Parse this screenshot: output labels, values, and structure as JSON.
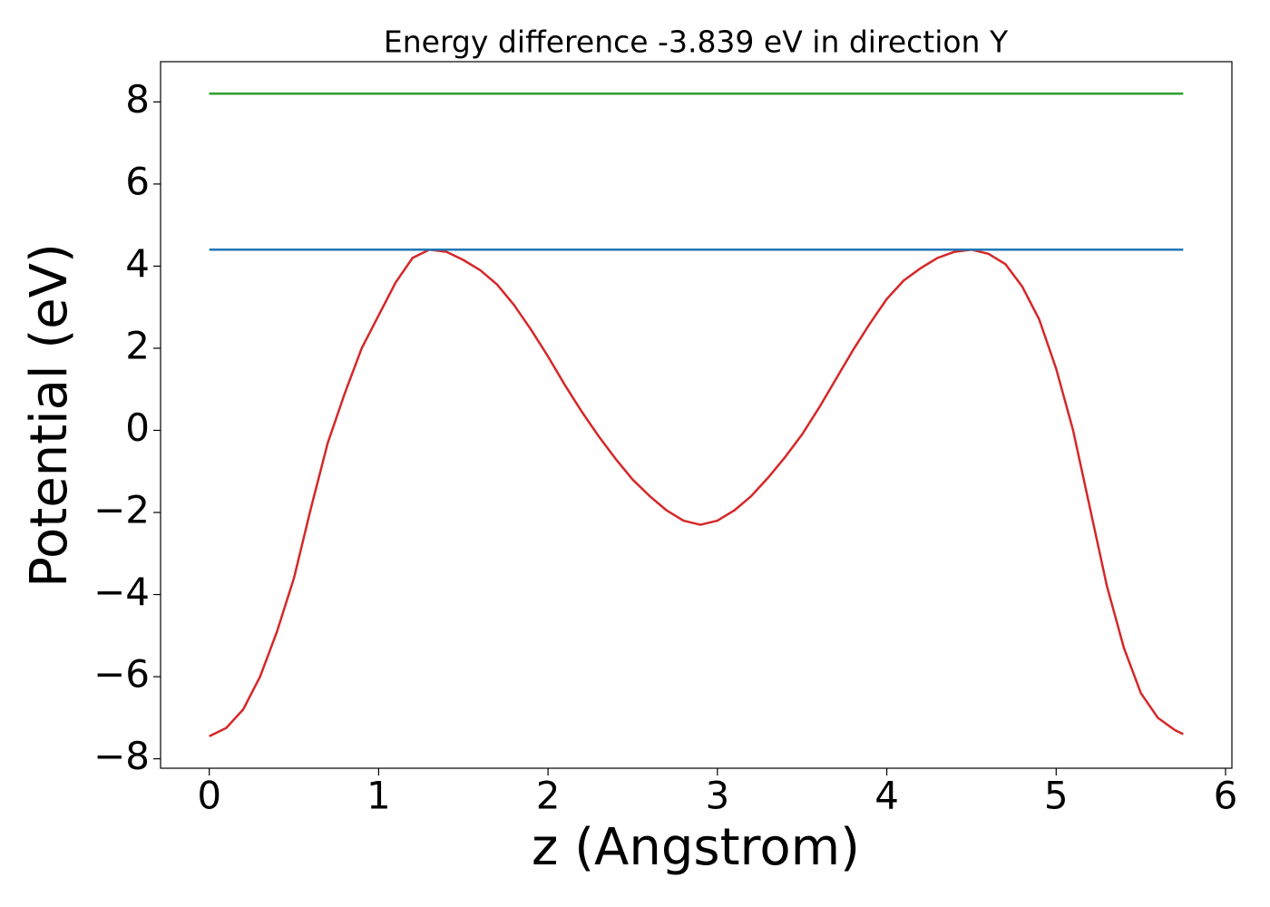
{
  "chart_data": {
    "type": "line",
    "title": "Energy difference -3.839 eV in direction Y",
    "x_label": "z (Angstrom)",
    "y_label": "Potential (eV)",
    "xlim": [
      -0.2875,
      6.0375
    ],
    "ylim": [
      -8.23,
      8.98
    ],
    "xticks": [
      0,
      1,
      2,
      3,
      4,
      5,
      6
    ],
    "yticks": [
      {
        "value": -8,
        "label": "−8"
      },
      {
        "value": -6,
        "label": "−6"
      },
      {
        "value": -4,
        "label": "−4"
      },
      {
        "value": -2,
        "label": "−2"
      },
      0,
      2,
      4,
      6,
      8
    ],
    "series": [
      {
        "color": "#d62728",
        "x": [
          0,
          0.1,
          0.2,
          0.3,
          0.4,
          0.5,
          0.6,
          0.7,
          0.8,
          0.9,
          1.0,
          1.1,
          1.2,
          1.3,
          1.4,
          1.5,
          1.6,
          1.7,
          1.8,
          1.9,
          2.0,
          2.1,
          2.2,
          2.3,
          2.4,
          2.5,
          2.6,
          2.7,
          2.8,
          2.9,
          3.0,
          3.1,
          3.2,
          3.3,
          3.4,
          3.5,
          3.6,
          3.7,
          3.8,
          3.9,
          4.0,
          4.1,
          4.2,
          4.3,
          4.4,
          4.5,
          4.6,
          4.7,
          4.8,
          4.9,
          5.0,
          5.1,
          5.2,
          5.3,
          5.4,
          5.5,
          5.6,
          5.7,
          5.75
        ],
        "values": [
          -7.45,
          -7.25,
          -6.8,
          -6.0,
          -4.9,
          -3.6,
          -1.9,
          -0.3,
          0.9,
          2.0,
          2.8,
          3.6,
          4.2,
          4.4,
          4.35,
          4.15,
          3.9,
          3.55,
          3.05,
          2.45,
          1.8,
          1.1,
          0.45,
          -0.15,
          -0.7,
          -1.2,
          -1.6,
          -1.95,
          -2.2,
          -2.3,
          -2.2,
          -1.95,
          -1.6,
          -1.15,
          -0.65,
          -0.1,
          0.55,
          1.25,
          1.95,
          2.6,
          3.2,
          3.65,
          3.95,
          4.2,
          4.35,
          4.4,
          4.3,
          4.05,
          3.5,
          2.7,
          1.5,
          0.0,
          -1.9,
          -3.8,
          -5.3,
          -6.4,
          -7.0,
          -7.3,
          -7.4
        ]
      },
      {
        "color": "#1f77b4",
        "x": [
          0,
          5.75
        ],
        "values": [
          4.4,
          4.4
        ]
      },
      {
        "color": "#2ca02c",
        "x": [
          0,
          5.75
        ],
        "values": [
          8.2,
          8.2
        ]
      }
    ]
  }
}
